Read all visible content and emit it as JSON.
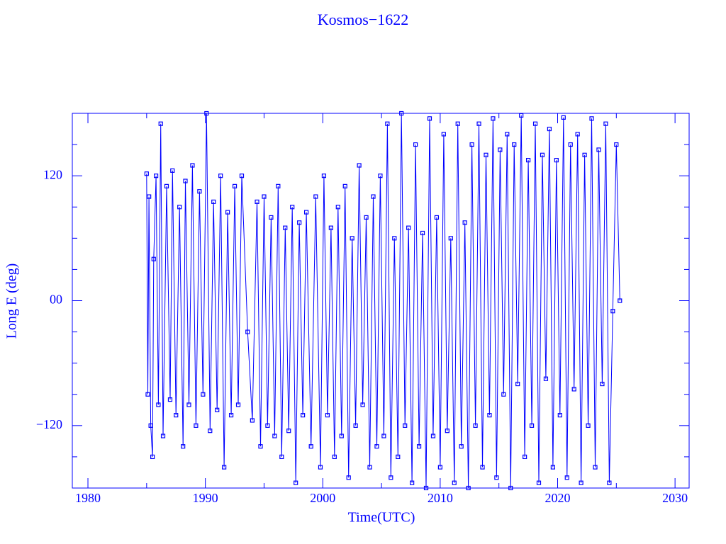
{
  "chart_data": {
    "type": "line",
    "title": "Kosmos−1622",
    "x_label": "Time(UTC)",
    "y_label": "Long E (deg)",
    "color": "#0000ff",
    "marker": "square",
    "xlim": [
      1978.67,
      2031.2
    ],
    "ylim": [
      -180,
      180
    ],
    "xticks": [
      1980,
      1990,
      2000,
      2010,
      2020,
      2030
    ],
    "xticks_minor": [
      1985,
      1995,
      2005,
      2015,
      2025
    ],
    "yticks": [
      {
        "value": -120,
        "label": "−120"
      },
      {
        "value": 0,
        "label": "00"
      },
      120
    ],
    "yticks_minor": [
      -150,
      -90,
      -60,
      -30,
      30,
      60,
      90,
      150
    ],
    "x": [
      1985.0,
      1985.1,
      1985.2,
      1985.35,
      1985.5,
      1985.6,
      1985.8,
      1986.0,
      1986.2,
      1986.4,
      1986.7,
      1987.0,
      1987.2,
      1987.5,
      1987.8,
      1988.1,
      1988.3,
      1988.6,
      1988.9,
      1989.2,
      1989.5,
      1989.8,
      1990.1,
      1990.4,
      1990.7,
      1991.0,
      1991.3,
      1991.6,
      1991.9,
      1992.2,
      1992.5,
      1992.8,
      1993.1,
      1993.6,
      1994.0,
      1994.4,
      1994.7,
      1995.0,
      1995.3,
      1995.6,
      1995.9,
      1996.2,
      1996.5,
      1996.8,
      1997.1,
      1997.4,
      1997.7,
      1998.0,
      1998.3,
      1998.6,
      1999.0,
      1999.4,
      1999.8,
      2000.1,
      2000.4,
      2000.7,
      2001.0,
      2001.3,
      2001.6,
      2001.9,
      2002.2,
      2002.5,
      2002.8,
      2003.1,
      2003.4,
      2003.7,
      2004.0,
      2004.3,
      2004.6,
      2004.9,
      2005.2,
      2005.5,
      2005.8,
      2006.1,
      2006.4,
      2006.7,
      2007.0,
      2007.3,
      2007.6,
      2007.9,
      2008.2,
      2008.5,
      2008.8,
      2009.1,
      2009.4,
      2009.7,
      2010.0,
      2010.3,
      2010.6,
      2010.9,
      2011.2,
      2011.5,
      2011.8,
      2012.1,
      2012.4,
      2012.7,
      2013.0,
      2013.3,
      2013.6,
      2013.9,
      2014.2,
      2014.5,
      2014.8,
      2015.1,
      2015.4,
      2015.7,
      2016.0,
      2016.3,
      2016.6,
      2016.9,
      2017.2,
      2017.5,
      2017.8,
      2018.1,
      2018.4,
      2018.7,
      2019.0,
      2019.3,
      2019.6,
      2019.9,
      2020.2,
      2020.5,
      2020.8,
      2021.1,
      2021.4,
      2021.7,
      2022.0,
      2022.3,
      2022.6,
      2022.9,
      2023.2,
      2023.5,
      2023.8,
      2024.1,
      2024.4,
      2024.7,
      2025.0,
      2025.3
    ],
    "values": [
      122,
      -90,
      100,
      -120,
      -150,
      40,
      120,
      -100,
      170,
      -130,
      110,
      -95,
      125,
      -110,
      90,
      -140,
      115,
      -100,
      130,
      -120,
      105,
      -90,
      180,
      -125,
      95,
      -105,
      120,
      -160,
      85,
      -110,
      110,
      -100,
      120,
      -30,
      -115,
      95,
      -140,
      100,
      -120,
      80,
      -130,
      110,
      -150,
      70,
      -125,
      90,
      -175,
      75,
      -110,
      85,
      -140,
      100,
      -160,
      120,
      -110,
      70,
      -150,
      90,
      -130,
      110,
      -170,
      60,
      -120,
      130,
      -100,
      80,
      -160,
      100,
      -140,
      120,
      -130,
      170,
      -170,
      60,
      -150,
      180,
      -120,
      70,
      -175,
      150,
      -140,
      65,
      -180,
      175,
      -130,
      80,
      -160,
      160,
      -125,
      60,
      -175,
      170,
      -140,
      75,
      -180,
      150,
      -120,
      170,
      -160,
      140,
      -110,
      175,
      -170,
      145,
      -90,
      160,
      -180,
      150,
      -80,
      178,
      -150,
      135,
      -120,
      170,
      -175,
      140,
      -75,
      165,
      -160,
      135,
      -110,
      176,
      -170,
      150,
      -85,
      160,
      -175,
      140,
      -120,
      175,
      -160,
      145,
      -80,
      170,
      -175,
      -10,
      150,
      0
    ]
  }
}
